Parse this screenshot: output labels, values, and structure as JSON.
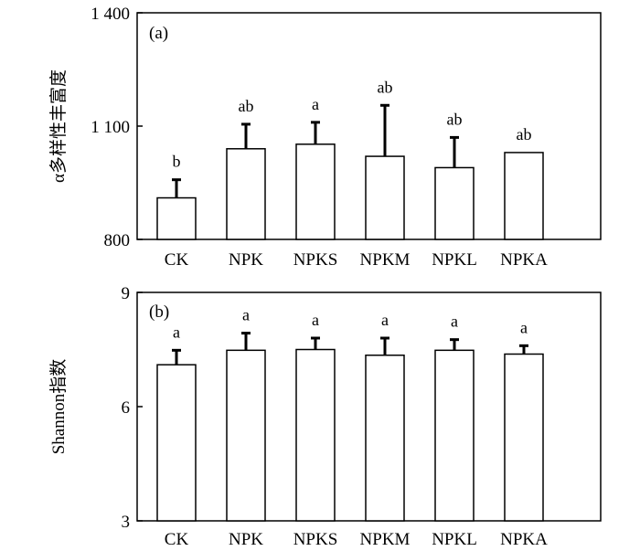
{
  "chart_data": [
    {
      "type": "bar",
      "panel_label": "(a)",
      "ylabel": "α多样性丰富度",
      "xlabel": "",
      "ylim": [
        800,
        1400
      ],
      "yticks": [
        800,
        1100,
        1400
      ],
      "ytick_labels": [
        "800",
        "1 100",
        "1 400"
      ],
      "categories": [
        "CK",
        "NPK",
        "NPKS",
        "NPKM",
        "NPKL",
        "NPKA"
      ],
      "values": [
        910,
        1040,
        1052,
        1020,
        990,
        1030
      ],
      "errors": [
        48,
        65,
        58,
        135,
        80,
        0
      ],
      "significance": [
        "b",
        "ab",
        "a",
        "ab",
        "ab",
        "ab"
      ],
      "grid": false
    },
    {
      "type": "bar",
      "panel_label": "(b)",
      "ylabel": "Shannon指数",
      "xlabel": "",
      "ylim": [
        3,
        9
      ],
      "yticks": [
        3,
        6,
        9
      ],
      "ytick_labels": [
        "3",
        "6",
        "9"
      ],
      "categories": [
        "CK",
        "NPK",
        "NPKS",
        "NPKM",
        "NPKL",
        "NPKA"
      ],
      "values": [
        7.1,
        7.48,
        7.5,
        7.35,
        7.48,
        7.38
      ],
      "errors": [
        0.38,
        0.45,
        0.3,
        0.45,
        0.28,
        0.22
      ],
      "significance": [
        "a",
        "a",
        "a",
        "a",
        "a",
        "a"
      ],
      "grid": false
    }
  ]
}
